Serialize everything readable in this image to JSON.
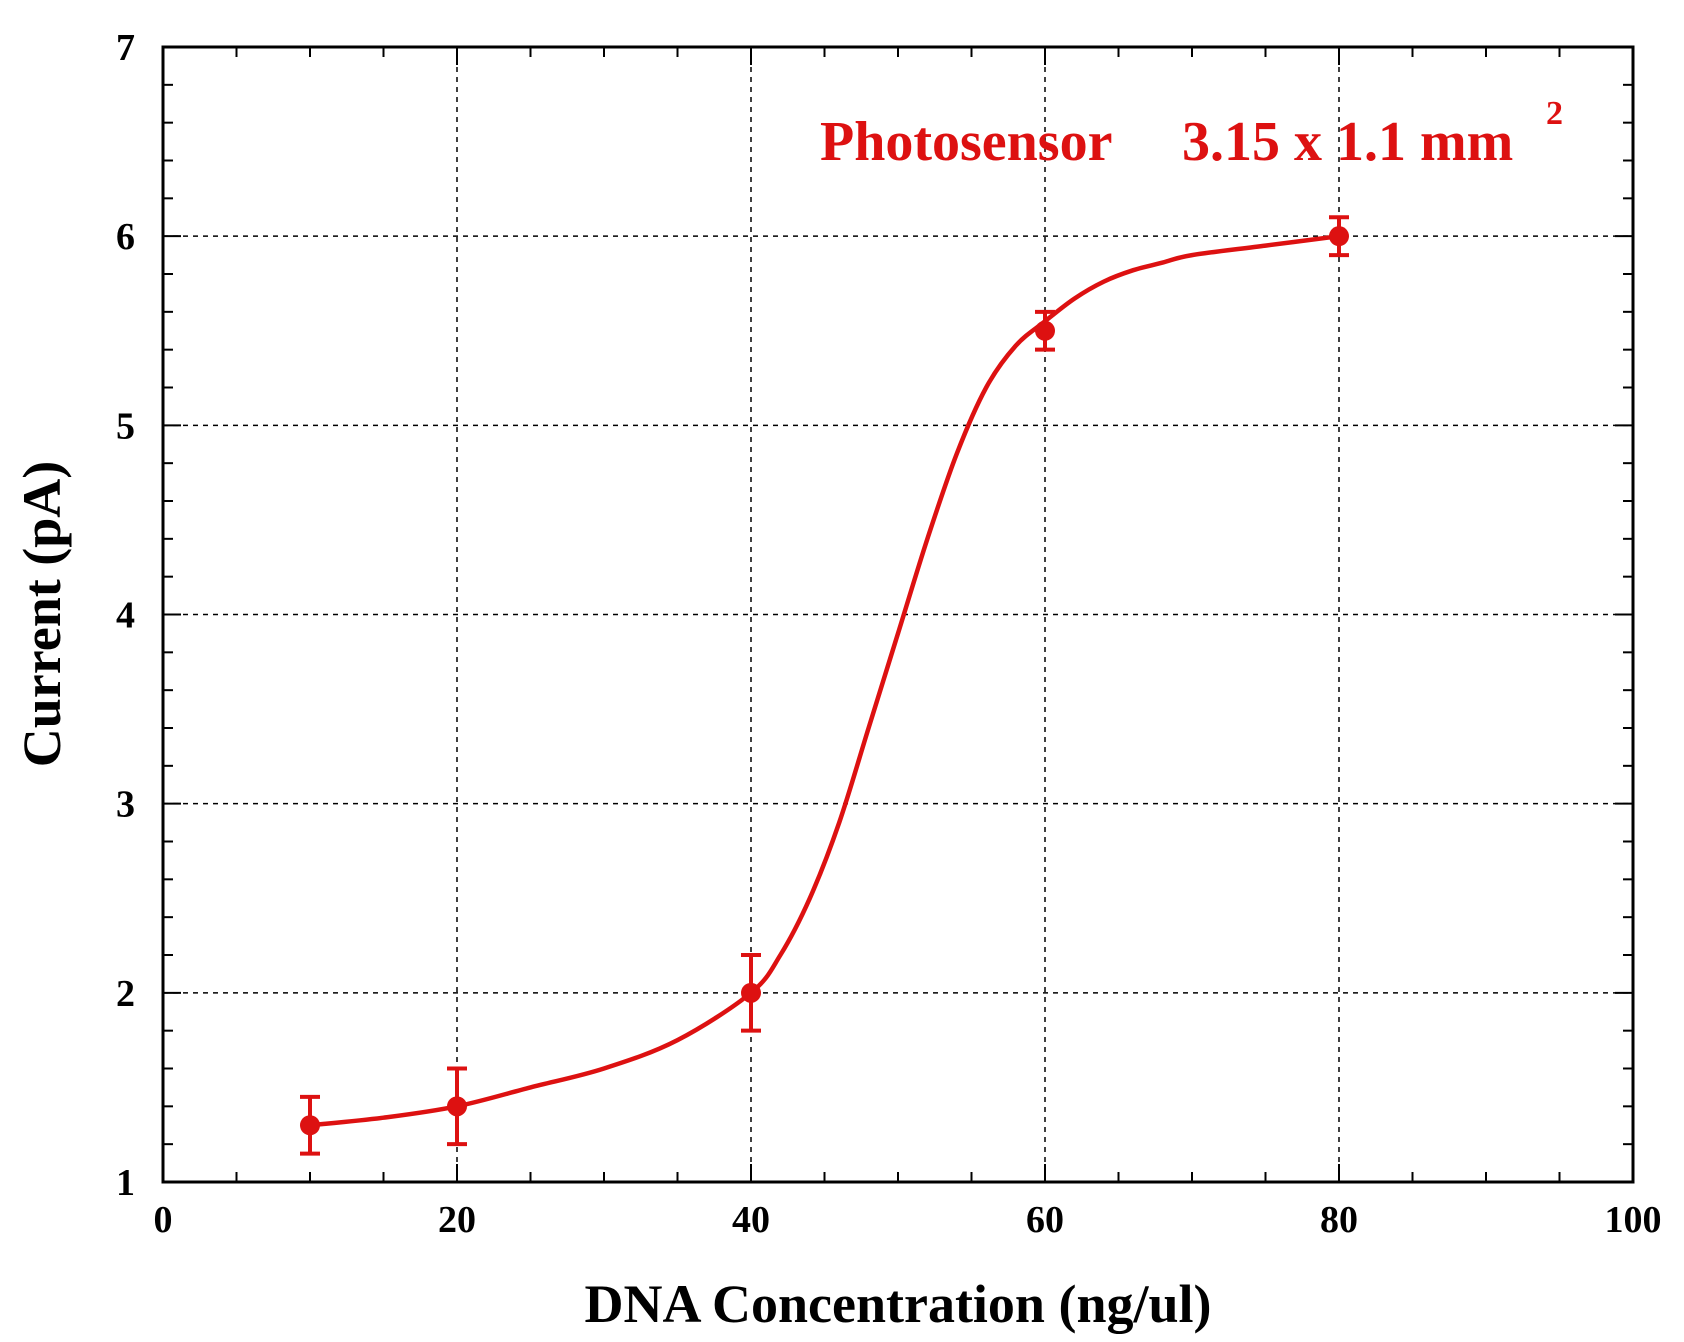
{
  "chart_data": {
    "type": "line",
    "title": "",
    "xlabel": "DNA Concentration (ng/ul)",
    "ylabel": "Current (pA)",
    "xlim": [
      0,
      100
    ],
    "ylim": [
      1,
      7
    ],
    "x_ticks": [
      0,
      20,
      40,
      60,
      80,
      100
    ],
    "y_ticks": [
      1,
      2,
      3,
      4,
      5,
      6,
      7
    ],
    "x_minor_step": 5,
    "y_minor_step": 0.2,
    "grid": true,
    "series": [
      {
        "name": "Photosensor 3.15 x 1.1 mm2",
        "color": "#dd1111",
        "x": [
          10,
          20,
          40,
          60,
          80
        ],
        "y": [
          1.3,
          1.4,
          2.0,
          5.5,
          6.0
        ],
        "error": [
          0.15,
          0.2,
          0.2,
          0.1,
          0.1
        ]
      }
    ],
    "fit_curve": {
      "x": [
        10,
        15,
        20,
        25,
        30,
        35,
        40,
        42,
        44,
        46,
        48,
        50,
        52,
        54,
        56,
        58,
        60,
        62,
        64,
        66,
        68,
        70,
        75,
        80
      ],
      "y": [
        1.3,
        1.34,
        1.4,
        1.5,
        1.6,
        1.75,
        2.0,
        2.2,
        2.5,
        2.9,
        3.4,
        3.9,
        4.4,
        4.85,
        5.2,
        5.42,
        5.55,
        5.67,
        5.76,
        5.82,
        5.86,
        5.9,
        5.95,
        6.0
      ]
    },
    "annotation": {
      "label": "Photosensor",
      "value": "3.15 x 1.1 mm",
      "superscript": "2",
      "color": "#dd1111",
      "position": "top-right"
    }
  }
}
